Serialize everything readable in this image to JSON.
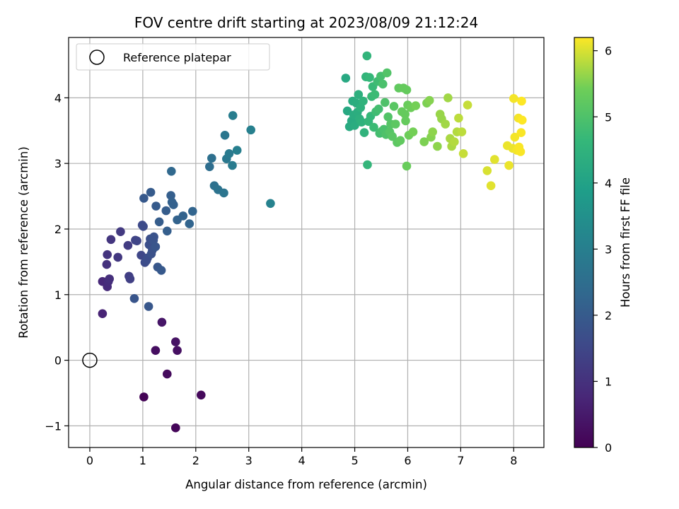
{
  "chart_data": {
    "type": "scatter",
    "title": "FOV centre drift starting at 2023/08/09 21:12:24",
    "xlabel": "Angular distance from reference (arcmin)",
    "ylabel": "Rotation from reference (arcmin)",
    "xlim": [
      -0.4,
      8.57
    ],
    "ylim": [
      -1.33,
      4.92
    ],
    "xticks": [
      0,
      1,
      2,
      3,
      4,
      5,
      6,
      7,
      8
    ],
    "yticks": [
      -1,
      0,
      1,
      2,
      3,
      4
    ],
    "xtick_labels": [
      "0",
      "1",
      "2",
      "3",
      "4",
      "5",
      "6",
      "7",
      "8"
    ],
    "ytick_labels": [
      "−1",
      "0",
      "1",
      "2",
      "3",
      "4"
    ],
    "grid": true,
    "legend": {
      "position": "top-left",
      "entries": [
        {
          "label": "Reference platepar",
          "marker": "hollow-circle"
        }
      ]
    },
    "reference_point": {
      "x": 0,
      "y": 0
    },
    "colorbar": {
      "label": "Hours from first FF file",
      "colormap": "viridis",
      "range": [
        0,
        6.2
      ],
      "ticks": [
        0,
        1,
        2,
        3,
        4,
        5,
        6
      ],
      "tick_labels": [
        "0",
        "1",
        "2",
        "3",
        "4",
        "5",
        "6"
      ]
    },
    "points": [
      {
        "x": 1.02,
        "y": -0.56,
        "c": 0.05
      },
      {
        "x": 1.62,
        "y": -1.03,
        "c": 0.1
      },
      {
        "x": 2.1,
        "y": -0.53,
        "c": 0.15
      },
      {
        "x": 1.46,
        "y": -0.21,
        "c": 0.2
      },
      {
        "x": 1.24,
        "y": 0.15,
        "c": 0.25
      },
      {
        "x": 1.65,
        "y": 0.15,
        "c": 0.3
      },
      {
        "x": 1.62,
        "y": 0.28,
        "c": 0.35
      },
      {
        "x": 1.36,
        "y": 0.58,
        "c": 0.4
      },
      {
        "x": 0.24,
        "y": 0.71,
        "c": 0.7
      },
      {
        "x": 0.24,
        "y": 1.2,
        "c": 0.8
      },
      {
        "x": 0.33,
        "y": 1.12,
        "c": 0.85
      },
      {
        "x": 0.35,
        "y": 1.2,
        "c": 0.9
      },
      {
        "x": 0.37,
        "y": 1.24,
        "c": 0.95
      },
      {
        "x": 0.32,
        "y": 1.46,
        "c": 1.0
      },
      {
        "x": 0.33,
        "y": 1.61,
        "c": 1.05
      },
      {
        "x": 0.4,
        "y": 1.84,
        "c": 1.1
      },
      {
        "x": 0.53,
        "y": 1.57,
        "c": 1.15
      },
      {
        "x": 0.58,
        "y": 1.96,
        "c": 1.2
      },
      {
        "x": 0.72,
        "y": 1.75,
        "c": 1.25
      },
      {
        "x": 0.74,
        "y": 1.28,
        "c": 1.3
      },
      {
        "x": 0.76,
        "y": 1.24,
        "c": 1.35
      },
      {
        "x": 0.86,
        "y": 1.83,
        "c": 1.4
      },
      {
        "x": 0.89,
        "y": 1.82,
        "c": 1.45
      },
      {
        "x": 0.97,
        "y": 1.6,
        "c": 1.5
      },
      {
        "x": 0.99,
        "y": 2.06,
        "c": 1.55
      },
      {
        "x": 1.01,
        "y": 2.04,
        "c": 1.6
      },
      {
        "x": 1.04,
        "y": 1.49,
        "c": 1.6
      },
      {
        "x": 1.07,
        "y": 1.52,
        "c": 1.65
      },
      {
        "x": 1.09,
        "y": 1.56,
        "c": 1.65
      },
      {
        "x": 1.12,
        "y": 1.76,
        "c": 1.7
      },
      {
        "x": 1.14,
        "y": 1.85,
        "c": 1.7
      },
      {
        "x": 1.16,
        "y": 1.62,
        "c": 1.75
      },
      {
        "x": 1.18,
        "y": 1.68,
        "c": 1.75
      },
      {
        "x": 1.2,
        "y": 1.83,
        "c": 1.8
      },
      {
        "x": 1.21,
        "y": 1.88,
        "c": 1.8
      },
      {
        "x": 1.24,
        "y": 1.73,
        "c": 1.85
      },
      {
        "x": 0.84,
        "y": 0.94,
        "c": 1.85
      },
      {
        "x": 1.11,
        "y": 0.82,
        "c": 1.9
      },
      {
        "x": 1.28,
        "y": 1.42,
        "c": 1.9
      },
      {
        "x": 1.35,
        "y": 1.37,
        "c": 1.95
      },
      {
        "x": 1.02,
        "y": 2.47,
        "c": 1.95
      },
      {
        "x": 1.15,
        "y": 2.56,
        "c": 2.0
      },
      {
        "x": 1.25,
        "y": 2.35,
        "c": 2.0
      },
      {
        "x": 1.31,
        "y": 2.11,
        "c": 2.05
      },
      {
        "x": 1.44,
        "y": 2.28,
        "c": 2.05
      },
      {
        "x": 1.46,
        "y": 1.97,
        "c": 2.1
      },
      {
        "x": 1.53,
        "y": 2.51,
        "c": 2.1
      },
      {
        "x": 1.55,
        "y": 2.41,
        "c": 2.15
      },
      {
        "x": 1.58,
        "y": 2.37,
        "c": 2.15
      },
      {
        "x": 1.65,
        "y": 2.14,
        "c": 2.2
      },
      {
        "x": 1.76,
        "y": 2.2,
        "c": 2.2
      },
      {
        "x": 1.88,
        "y": 2.08,
        "c": 2.25
      },
      {
        "x": 1.94,
        "y": 2.27,
        "c": 2.25
      },
      {
        "x": 1.54,
        "y": 2.88,
        "c": 2.35
      },
      {
        "x": 2.26,
        "y": 2.95,
        "c": 2.5
      },
      {
        "x": 2.3,
        "y": 3.08,
        "c": 2.55
      },
      {
        "x": 2.35,
        "y": 2.66,
        "c": 2.6
      },
      {
        "x": 2.42,
        "y": 2.6,
        "c": 2.65
      },
      {
        "x": 2.53,
        "y": 2.55,
        "c": 2.7
      },
      {
        "x": 2.55,
        "y": 3.43,
        "c": 2.75
      },
      {
        "x": 2.58,
        "y": 3.07,
        "c": 2.8
      },
      {
        "x": 2.63,
        "y": 3.15,
        "c": 2.85
      },
      {
        "x": 2.69,
        "y": 2.97,
        "c": 2.9
      },
      {
        "x": 2.7,
        "y": 3.73,
        "c": 2.95
      },
      {
        "x": 2.78,
        "y": 3.2,
        "c": 3.0
      },
      {
        "x": 3.04,
        "y": 3.51,
        "c": 3.05
      },
      {
        "x": 3.41,
        "y": 2.39,
        "c": 3.1
      },
      {
        "x": 4.83,
        "y": 4.3,
        "c": 4.2
      },
      {
        "x": 4.86,
        "y": 3.8,
        "c": 4.2
      },
      {
        "x": 4.9,
        "y": 3.56,
        "c": 4.25
      },
      {
        "x": 4.94,
        "y": 3.65,
        "c": 4.25
      },
      {
        "x": 4.96,
        "y": 3.95,
        "c": 4.3
      },
      {
        "x": 4.98,
        "y": 3.74,
        "c": 4.3
      },
      {
        "x": 5.0,
        "y": 3.58,
        "c": 4.3
      },
      {
        "x": 5.03,
        "y": 3.92,
        "c": 4.35
      },
      {
        "x": 5.05,
        "y": 3.78,
        "c": 4.35
      },
      {
        "x": 5.07,
        "y": 4.05,
        "c": 4.4
      },
      {
        "x": 5.09,
        "y": 3.68,
        "c": 4.4
      },
      {
        "x": 5.11,
        "y": 3.85,
        "c": 4.45
      },
      {
        "x": 5.13,
        "y": 3.63,
        "c": 4.45
      },
      {
        "x": 5.16,
        "y": 3.95,
        "c": 4.5
      },
      {
        "x": 5.18,
        "y": 3.47,
        "c": 4.5
      },
      {
        "x": 5.21,
        "y": 4.32,
        "c": 4.55
      },
      {
        "x": 5.23,
        "y": 4.64,
        "c": 4.55
      },
      {
        "x": 5.24,
        "y": 2.98,
        "c": 4.6
      },
      {
        "x": 5.26,
        "y": 3.64,
        "c": 4.6
      },
      {
        "x": 5.28,
        "y": 4.31,
        "c": 4.65
      },
      {
        "x": 5.3,
        "y": 3.72,
        "c": 4.65
      },
      {
        "x": 5.32,
        "y": 4.02,
        "c": 4.7
      },
      {
        "x": 5.34,
        "y": 4.17,
        "c": 4.7
      },
      {
        "x": 5.36,
        "y": 3.55,
        "c": 4.75
      },
      {
        "x": 5.38,
        "y": 4.05,
        "c": 4.75
      },
      {
        "x": 5.4,
        "y": 3.79,
        "c": 4.8
      },
      {
        "x": 5.43,
        "y": 4.25,
        "c": 4.8
      },
      {
        "x": 5.45,
        "y": 3.83,
        "c": 4.85
      },
      {
        "x": 5.47,
        "y": 3.46,
        "c": 4.85
      },
      {
        "x": 5.49,
        "y": 4.33,
        "c": 4.9
      },
      {
        "x": 5.51,
        "y": 3.49,
        "c": 4.9
      },
      {
        "x": 5.53,
        "y": 4.21,
        "c": 4.95
      },
      {
        "x": 5.55,
        "y": 3.52,
        "c": 4.95
      },
      {
        "x": 5.57,
        "y": 3.93,
        "c": 5.0
      },
      {
        "x": 5.59,
        "y": 3.44,
        "c": 5.0
      },
      {
        "x": 5.61,
        "y": 4.38,
        "c": 5.05
      },
      {
        "x": 5.63,
        "y": 3.71,
        "c": 5.05
      },
      {
        "x": 5.66,
        "y": 3.48,
        "c": 5.1
      },
      {
        "x": 5.68,
        "y": 3.6,
        "c": 5.1
      },
      {
        "x": 5.71,
        "y": 3.41,
        "c": 5.15
      },
      {
        "x": 5.74,
        "y": 3.87,
        "c": 5.15
      },
      {
        "x": 5.77,
        "y": 3.6,
        "c": 5.2
      },
      {
        "x": 5.8,
        "y": 3.32,
        "c": 5.2
      },
      {
        "x": 5.83,
        "y": 4.15,
        "c": 5.25
      },
      {
        "x": 5.86,
        "y": 3.35,
        "c": 5.25
      },
      {
        "x": 5.89,
        "y": 3.79,
        "c": 5.3
      },
      {
        "x": 5.92,
        "y": 4.15,
        "c": 5.3
      },
      {
        "x": 5.95,
        "y": 3.75,
        "c": 5.3
      },
      {
        "x": 5.98,
        "y": 2.96,
        "c": 5.35
      },
      {
        "x": 6.0,
        "y": 3.89,
        "c": 5.35
      },
      {
        "x": 6.02,
        "y": 3.43,
        "c": 5.4
      },
      {
        "x": 6.06,
        "y": 3.85,
        "c": 5.4
      },
      {
        "x": 6.1,
        "y": 3.48,
        "c": 5.45
      },
      {
        "x": 6.15,
        "y": 3.88,
        "c": 5.45
      },
      {
        "x": 5.98,
        "y": 4.12,
        "c": 5.3
      },
      {
        "x": 5.96,
        "y": 3.65,
        "c": 5.3
      },
      {
        "x": 6.31,
        "y": 3.33,
        "c": 5.5
      },
      {
        "x": 6.36,
        "y": 3.92,
        "c": 5.5
      },
      {
        "x": 6.41,
        "y": 3.96,
        "c": 5.55
      },
      {
        "x": 6.44,
        "y": 3.4,
        "c": 5.55
      },
      {
        "x": 6.47,
        "y": 3.48,
        "c": 5.6
      },
      {
        "x": 6.56,
        "y": 3.26,
        "c": 5.6
      },
      {
        "x": 6.61,
        "y": 3.75,
        "c": 5.65
      },
      {
        "x": 6.64,
        "y": 3.68,
        "c": 5.65
      },
      {
        "x": 6.71,
        "y": 3.6,
        "c": 5.7
      },
      {
        "x": 6.76,
        "y": 4.0,
        "c": 5.7
      },
      {
        "x": 6.8,
        "y": 3.38,
        "c": 5.75
      },
      {
        "x": 6.83,
        "y": 3.26,
        "c": 5.75
      },
      {
        "x": 6.88,
        "y": 3.33,
        "c": 5.8
      },
      {
        "x": 6.93,
        "y": 3.48,
        "c": 5.8
      },
      {
        "x": 6.96,
        "y": 3.69,
        "c": 5.85
      },
      {
        "x": 7.02,
        "y": 3.48,
        "c": 5.85
      },
      {
        "x": 7.05,
        "y": 3.15,
        "c": 5.9
      },
      {
        "x": 7.13,
        "y": 3.89,
        "c": 5.9
      },
      {
        "x": 7.5,
        "y": 2.89,
        "c": 6.0
      },
      {
        "x": 7.57,
        "y": 2.66,
        "c": 6.05
      },
      {
        "x": 7.64,
        "y": 3.06,
        "c": 6.05
      },
      {
        "x": 7.88,
        "y": 3.27,
        "c": 6.1
      },
      {
        "x": 7.91,
        "y": 2.97,
        "c": 6.1
      },
      {
        "x": 7.98,
        "y": 3.23,
        "c": 6.1
      },
      {
        "x": 8.0,
        "y": 3.99,
        "c": 6.15
      },
      {
        "x": 8.02,
        "y": 3.4,
        "c": 6.15
      },
      {
        "x": 8.06,
        "y": 3.2,
        "c": 6.15
      },
      {
        "x": 8.09,
        "y": 3.69,
        "c": 6.15
      },
      {
        "x": 8.1,
        "y": 3.25,
        "c": 6.18
      },
      {
        "x": 8.13,
        "y": 3.18,
        "c": 6.18
      },
      {
        "x": 8.14,
        "y": 3.47,
        "c": 6.18
      },
      {
        "x": 8.15,
        "y": 3.95,
        "c": 6.2
      },
      {
        "x": 8.16,
        "y": 3.66,
        "c": 6.2
      }
    ]
  }
}
